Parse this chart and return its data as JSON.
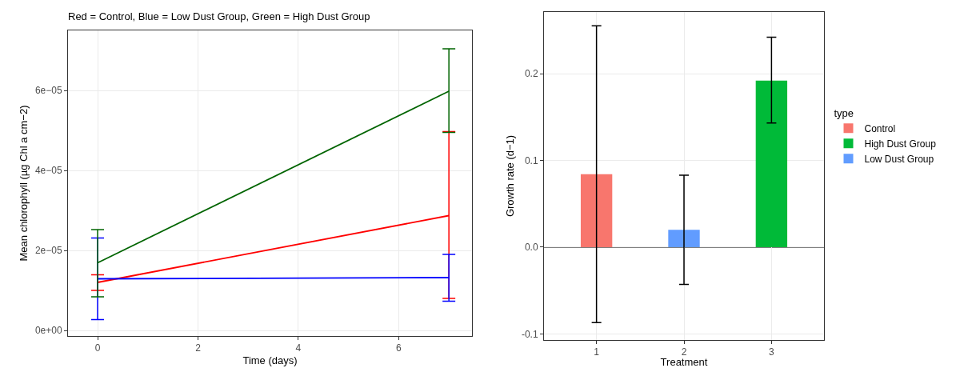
{
  "chart_data": [
    {
      "type": "line",
      "title": "Red = Control, Blue = Low Dust Group, Green = High Dust Group",
      "xlabel": "Time (days)",
      "ylabel": "Mean chlorophyll (µg Chl a cm−2)",
      "x": [
        0,
        7
      ],
      "series": [
        {
          "color": "#ff0000",
          "values": [
            1.2e-05,
            2.87e-05
          ],
          "errors": [
            [
              1e-05,
              1.39e-05
            ],
            [
              8e-06,
              4.97e-05
            ]
          ]
        },
        {
          "color": "#0000ff",
          "values": [
            1.29e-05,
            1.32e-05
          ],
          "errors": [
            [
              2.7e-06,
              2.31e-05
            ],
            [
              7.3e-06,
              1.9e-05
            ]
          ]
        },
        {
          "color": "#006400",
          "values": [
            1.69e-05,
            5.98e-05
          ],
          "errors": [
            [
              8.4e-06,
              2.52e-05
            ],
            [
              4.95e-05,
              7.04e-05
            ]
          ]
        }
      ],
      "xlim": [
        -0.59,
        7.46
      ],
      "xticks": [
        0,
        2,
        4,
        6
      ],
      "ylim": [
        -1.4e-06,
        7.5e-05
      ],
      "yticks": [
        {
          "value": 0,
          "label": "0e+00"
        },
        {
          "value": 2e-05,
          "label": "2e−05"
        },
        {
          "value": 4e-05,
          "label": "4e−05"
        },
        {
          "value": 6e-05,
          "label": "6e−05"
        }
      ],
      "grid": true,
      "legend": false
    },
    {
      "type": "bar",
      "xlabel": "Treatment",
      "ylabel": "Growth rate (d−1)",
      "legend_title": "type",
      "categories": [
        "1",
        "2",
        "3"
      ],
      "series": [
        {
          "name": "Control",
          "color": "#f8766d",
          "values": [
            0.084,
            null,
            null
          ],
          "errors": [
            [
              -0.087,
              0.255
            ],
            null,
            null
          ]
        },
        {
          "name": "High Dust Group",
          "color": "#00ba38",
          "values": [
            null,
            null,
            0.192
          ],
          "errors": [
            null,
            null,
            [
              0.143,
              0.242
            ]
          ]
        },
        {
          "name": "Low Dust Group",
          "color": "#619cff",
          "values": [
            null,
            0.02,
            null
          ],
          "errors": [
            null,
            [
              -0.043,
              0.083
            ],
            null
          ]
        }
      ],
      "ylim": [
        -0.107,
        0.271
      ],
      "yticks": [
        {
          "value": -0.1,
          "label": "-0.1"
        },
        {
          "value": 0,
          "label": "0.0"
        },
        {
          "value": 0.1,
          "label": "0.1"
        },
        {
          "value": 0.2,
          "label": "0.2"
        }
      ],
      "ref_lines": [
        {
          "axis": "y",
          "value": 0,
          "color": "#000000"
        }
      ],
      "grid": true,
      "legend": "right"
    }
  ]
}
